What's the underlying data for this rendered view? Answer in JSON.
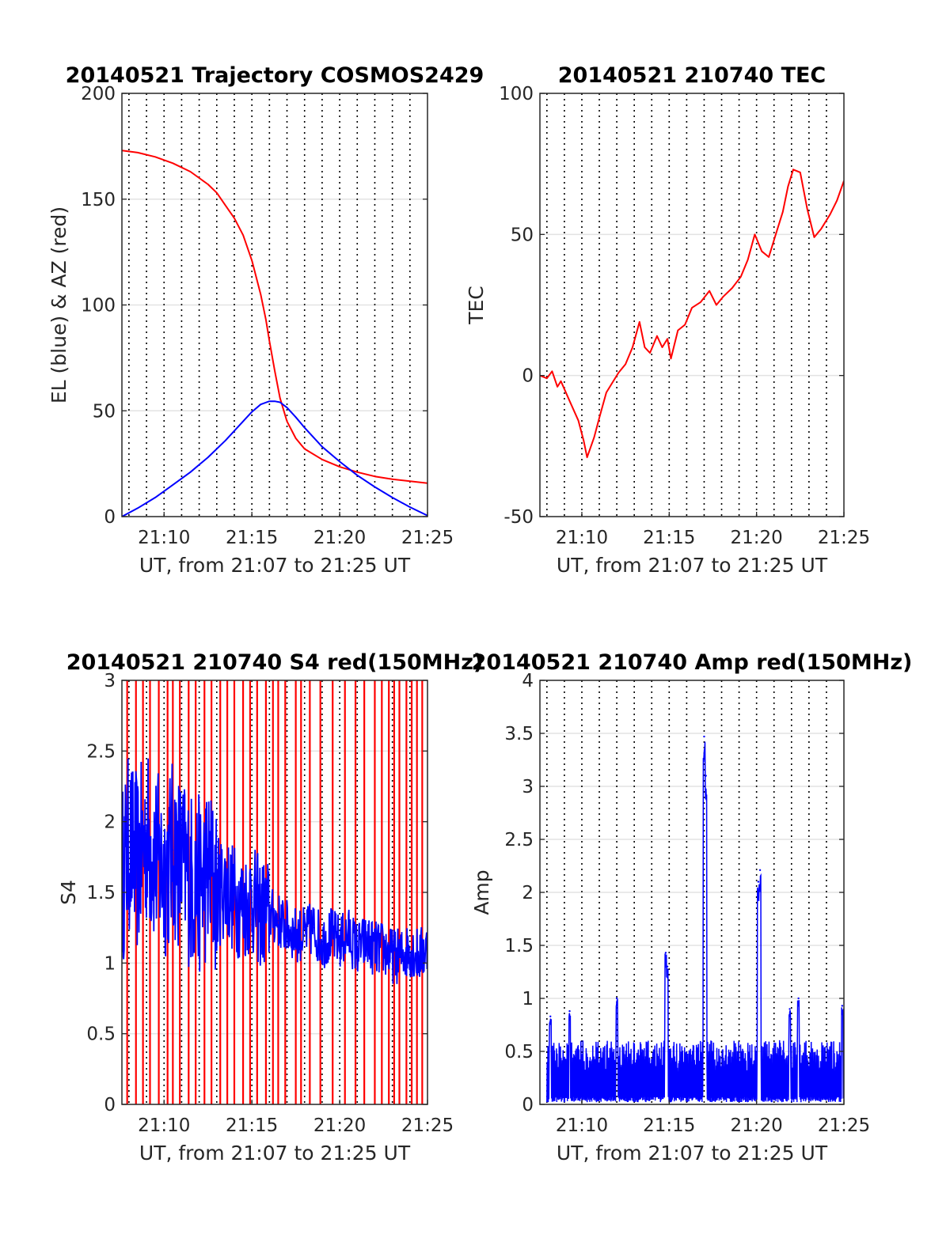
{
  "figure": {
    "background": "#ffffff"
  },
  "chart_data": [
    {
      "id": "trajectory",
      "type": "line",
      "title": "20140521 Trajectory COSMOS2429",
      "xlabel": "UT, from 21:07 to 21:25 UT",
      "ylabel": "EL (blue) & AZ (red)",
      "xlim": [
        7.6,
        25
      ],
      "ylim": [
        0,
        200
      ],
      "x_ticks": [
        10,
        15,
        20,
        25
      ],
      "x_tick_labels": [
        "21:10",
        "21:15",
        "21:20",
        "21:25"
      ],
      "y_ticks": [
        0,
        50,
        100,
        150,
        200
      ],
      "y_tick_labels": [
        "0",
        "50",
        "100",
        "150",
        "200"
      ],
      "grid": true,
      "series": [
        {
          "color": "#ff0000",
          "x": [
            7.6,
            8.5,
            9.5,
            10.5,
            11.5,
            12.5,
            13.0,
            13.5,
            14.0,
            14.5,
            15.0,
            15.5,
            15.8,
            16.0,
            16.3,
            16.6,
            17.0,
            17.5,
            18.0,
            19.0,
            20.0,
            21.0,
            22.0,
            23.0,
            24.0,
            25.0
          ],
          "y": [
            173,
            172,
            170,
            167,
            163,
            157,
            153,
            147,
            141,
            133,
            121,
            105,
            93,
            83,
            69,
            56,
            45,
            37,
            32,
            27,
            23.5,
            21,
            19,
            17.7,
            16.7,
            15.8
          ]
        },
        {
          "color": "#0000ff",
          "x": [
            7.6,
            8.5,
            9.5,
            10.5,
            11.5,
            12.5,
            13.5,
            14.5,
            15.0,
            15.5,
            16.0,
            16.3,
            16.6,
            17.0,
            17.5,
            18.0,
            19.0,
            20.0,
            21.0,
            22.0,
            23.0,
            24.0,
            25.0
          ],
          "y": [
            0,
            4,
            9,
            15,
            21,
            28,
            36,
            45,
            49.5,
            53,
            54.5,
            54.5,
            54,
            51.5,
            47,
            42,
            33,
            26,
            19.5,
            14,
            9,
            4.5,
            0.5
          ]
        }
      ]
    },
    {
      "id": "tec",
      "type": "line",
      "title": "20140521 210740 TEC",
      "xlabel": "UT, from 21:07 to 21:25 UT",
      "ylabel": "TEC",
      "xlim": [
        7.6,
        25
      ],
      "ylim": [
        -50,
        100
      ],
      "x_ticks": [
        10,
        15,
        20,
        25
      ],
      "x_tick_labels": [
        "21:10",
        "21:15",
        "21:20",
        "21:25"
      ],
      "y_ticks": [
        -50,
        0,
        50,
        100
      ],
      "y_tick_labels": [
        "-50",
        "0",
        "50",
        "100"
      ],
      "grid": true,
      "series": [
        {
          "color": "#ff0000",
          "x": [
            7.6,
            8.0,
            8.3,
            8.6,
            8.8,
            9.3,
            9.8,
            10.1,
            10.3,
            10.7,
            11.0,
            11.4,
            11.7,
            12.1,
            12.5,
            12.9,
            13.3,
            13.6,
            13.9,
            14.3,
            14.6,
            14.9,
            15.1,
            15.5,
            15.9,
            16.3,
            16.8,
            17.3,
            17.7,
            18.1,
            18.6,
            19.1,
            19.5,
            19.9,
            20.3,
            20.7,
            21.1,
            21.5,
            21.8,
            22.1,
            22.5,
            22.9,
            23.3,
            23.7,
            24.2,
            24.6,
            25.0
          ],
          "y": [
            0,
            -1,
            1.5,
            -4,
            -2,
            -9,
            -16,
            -23,
            -29,
            -22,
            -15,
            -6,
            -3,
            1,
            4,
            10,
            19,
            10,
            8,
            14,
            10,
            13,
            6,
            16,
            18,
            24,
            26,
            30,
            25,
            28,
            31,
            35,
            41,
            50,
            44,
            42,
            50,
            58,
            67,
            73,
            72,
            59,
            49,
            52,
            57,
            62,
            69
          ]
        }
      ]
    },
    {
      "id": "s4",
      "type": "line",
      "title": "20140521 210740 S4 red(150MHz)",
      "xlabel": "UT, from 21:07 to 21:25 UT",
      "ylabel": "S4",
      "xlim": [
        7.6,
        25
      ],
      "ylim": [
        0,
        3
      ],
      "x_ticks": [
        10,
        15,
        20,
        25
      ],
      "x_tick_labels": [
        "21:10",
        "21:15",
        "21:20",
        "21:25"
      ],
      "y_ticks": [
        0,
        0.5,
        1,
        1.5,
        2,
        2.5,
        3
      ],
      "y_tick_labels": [
        "0",
        "0.5",
        "1",
        "1.5",
        "2",
        "2.5",
        "3"
      ],
      "grid": true,
      "red_spikes_x": [
        7.9,
        8.4,
        8.8,
        9.2,
        9.7,
        10.2,
        10.5,
        10.9,
        11.4,
        11.8,
        12.3,
        12.7,
        13.2,
        13.6,
        14.0,
        14.5,
        14.9,
        15.3,
        15.8,
        16.2,
        16.5,
        16.9,
        17.5,
        17.8,
        18.3,
        18.9,
        19.6,
        20.3,
        20.9,
        21.4,
        22.0,
        22.4,
        22.8,
        23.1,
        23.4,
        23.8,
        24.1,
        24.4,
        24.7
      ],
      "series": [
        {
          "color": "#0000ff",
          "x": [
            7.6,
            8.0,
            8.5,
            9.0,
            9.5,
            10.0,
            10.5,
            11.0,
            11.5,
            12.0,
            12.5,
            13.0,
            13.5,
            14.0,
            14.5,
            15.0,
            15.5,
            16.0,
            16.5,
            17.0,
            17.5,
            18.0,
            18.5,
            19.0,
            19.5,
            20.0,
            20.5,
            21.0,
            21.5,
            22.0,
            22.5,
            23.0,
            23.5,
            24.0,
            24.5,
            25.0
          ],
          "y": [
            1.6,
            1.85,
            1.7,
            1.9,
            1.75,
            1.65,
            1.8,
            1.7,
            1.6,
            1.55,
            1.65,
            1.5,
            1.55,
            1.45,
            1.4,
            1.45,
            1.35,
            1.35,
            1.3,
            1.25,
            1.2,
            1.2,
            1.25,
            1.15,
            1.2,
            1.15,
            1.2,
            1.1,
            1.15,
            1.1,
            1.1,
            1.05,
            1.05,
            1.1,
            1.05,
            1.1
          ]
        }
      ]
    },
    {
      "id": "amp",
      "type": "line",
      "title": "20140521 210740 Amp red(150MHz)",
      "xlabel": "UT, from 21:07 to 21:25 UT",
      "ylabel": "Amp",
      "xlim": [
        7.6,
        25
      ],
      "ylim": [
        0,
        4
      ],
      "x_ticks": [
        10,
        15,
        20,
        25
      ],
      "x_tick_labels": [
        "21:10",
        "21:15",
        "21:20",
        "21:25"
      ],
      "y_ticks": [
        0,
        0.5,
        1,
        1.5,
        2,
        2.5,
        3,
        3.5,
        4
      ],
      "y_tick_labels": [
        "0",
        "0.5",
        "1",
        "1.5",
        "2",
        "2.5",
        "3",
        "3.5",
        "4"
      ],
      "grid": true,
      "series": [
        {
          "color": "#0000ff",
          "noise_level": 0.55,
          "peaks": [
            {
              "x": 8.2,
              "y": 0.83
            },
            {
              "x": 9.3,
              "y": 0.88
            },
            {
              "x": 12.0,
              "y": 1.0
            },
            {
              "x": 14.8,
              "y": 1.43
            },
            {
              "x": 14.9,
              "y": 1.3
            },
            {
              "x": 17.0,
              "y": 3.47
            },
            {
              "x": 17.1,
              "y": 3.1
            },
            {
              "x": 20.1,
              "y": 2.1
            },
            {
              "x": 20.2,
              "y": 2.21
            },
            {
              "x": 21.9,
              "y": 0.9
            },
            {
              "x": 22.4,
              "y": 1.0
            },
            {
              "x": 24.9,
              "y": 0.93
            }
          ]
        }
      ]
    }
  ]
}
